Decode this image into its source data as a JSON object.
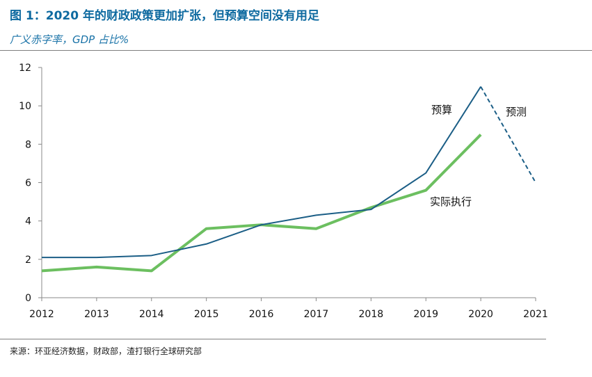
{
  "header": {
    "title": "图 1：2020 年的财政政策更加扩张，但预算空间没有用足",
    "subtitle": "广义赤字率，GDP 占比%"
  },
  "footer": {
    "source": "来源：环亚经济数据，财政部，渣打银行全球研究部"
  },
  "chart_data": {
    "type": "line",
    "categories": [
      "2012",
      "2013",
      "2014",
      "2015",
      "2016",
      "2017",
      "2018",
      "2019",
      "2020",
      "2021"
    ],
    "ylim": [
      0,
      12
    ],
    "yticks": [
      0,
      2,
      4,
      6,
      8,
      10,
      12
    ],
    "grid": false,
    "series": [
      {
        "name": "预算",
        "color": "#1b5e86",
        "values": [
          2.1,
          2.1,
          2.2,
          2.8,
          3.8,
          4.3,
          4.6,
          6.5,
          11.0,
          null
        ]
      },
      {
        "name": "实际执行",
        "color": "#6cbf60",
        "values": [
          1.4,
          1.6,
          1.4,
          3.6,
          3.8,
          3.6,
          4.7,
          5.6,
          8.5,
          null
        ]
      },
      {
        "name": "预测",
        "color": "#1b5e86",
        "style": "dashed",
        "values": [
          null,
          null,
          null,
          null,
          null,
          null,
          null,
          null,
          11.0,
          6.0
        ]
      }
    ]
  }
}
